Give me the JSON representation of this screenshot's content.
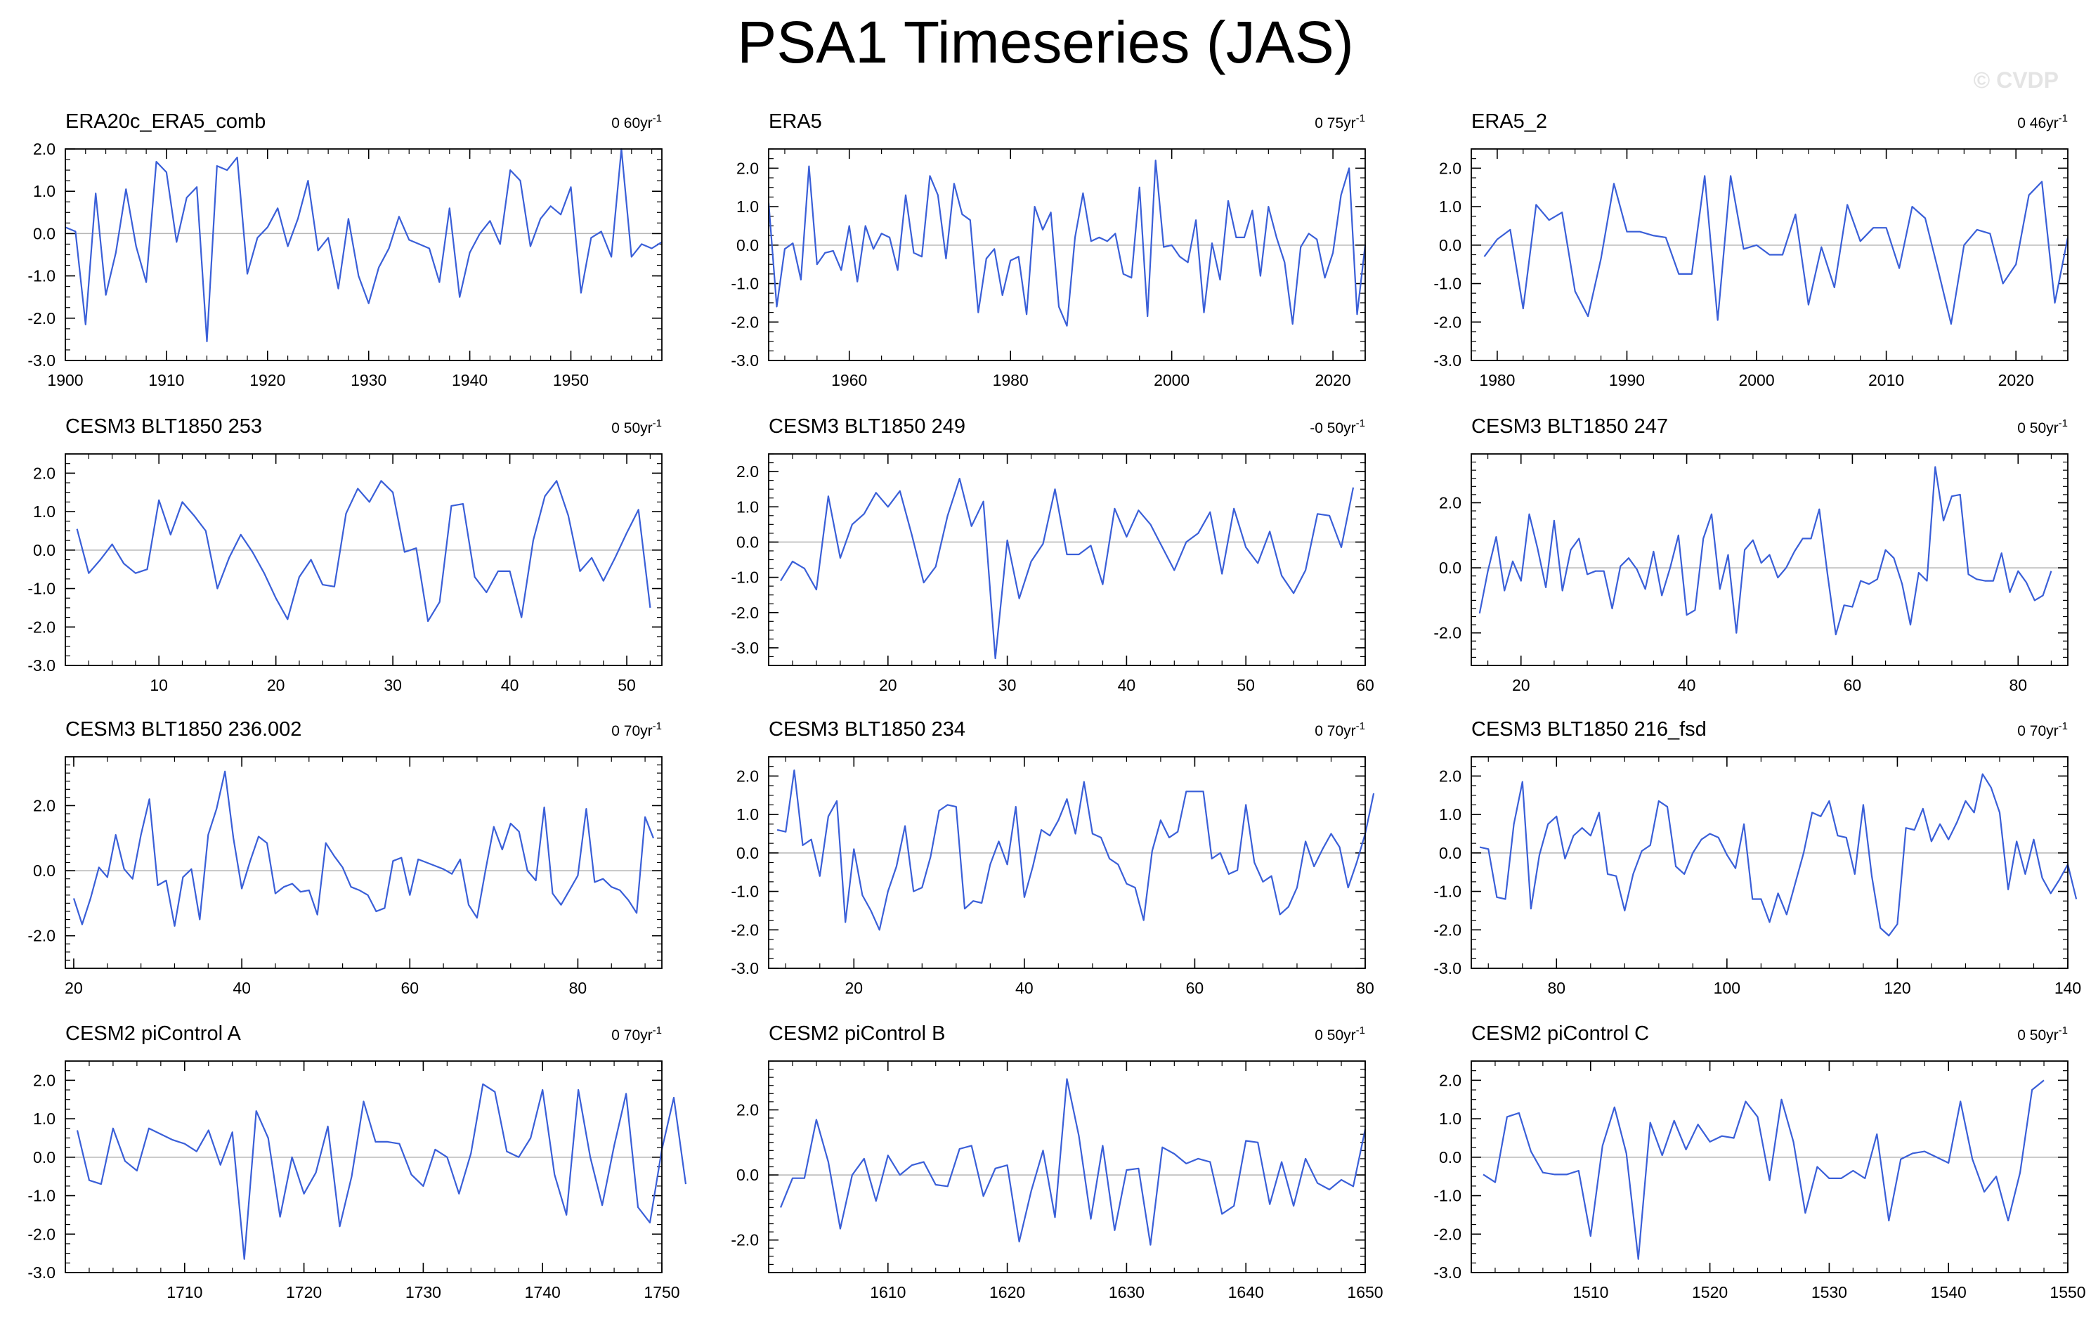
{
  "title": "PSA1 Timeseries (JAS)",
  "watermark": "© CVDP",
  "colors": {
    "series": "#3a5fd8",
    "zero_line": "#b4b4b4",
    "axis": "#000000"
  },
  "chart_data": [
    {
      "type": "line",
      "title": "ERA20c_ERA5_comb",
      "trend": "0 60yr",
      "trend_unit": "-1",
      "xlim": [
        1900,
        1959
      ],
      "ylim": [
        -3,
        2
      ],
      "xticks": [
        1900,
        1910,
        1920,
        1930,
        1940,
        1950
      ],
      "yticks": [
        -3,
        -2,
        -1,
        0,
        1,
        2
      ],
      "yticklabels": [
        "-3.0",
        "-2.0",
        "-1.0",
        "0.0",
        "1.0",
        "2.0"
      ],
      "x_start": 1900,
      "x_step": 1,
      "values": [
        0.15,
        0.05,
        -2.15,
        0.95,
        -1.45,
        -0.45,
        1.05,
        -0.3,
        -1.15,
        1.7,
        1.45,
        -0.2,
        0.85,
        1.1,
        -2.55,
        1.6,
        1.5,
        1.8,
        -0.95,
        -0.1,
        0.15,
        0.6,
        -0.3,
        0.35,
        1.25,
        -0.4,
        -0.1,
        -1.3,
        0.35,
        -1.0,
        -1.65,
        -0.8,
        -0.35,
        0.4,
        -0.15,
        -0.25,
        -0.35,
        -1.15,
        0.6,
        -1.5,
        -0.45,
        0.0,
        0.3,
        -0.25,
        1.5,
        1.25,
        -0.3,
        0.35,
        0.65,
        0.45,
        1.1,
        -1.4,
        -0.1,
        0.05,
        -0.55,
        2.0,
        -0.55,
        -0.25,
        -0.35,
        -0.2
      ]
    },
    {
      "type": "line",
      "title": "ERA5",
      "trend": "0 75yr",
      "trend_unit": "-1",
      "xlim": [
        1950,
        2024
      ],
      "ylim": [
        -3,
        2.5
      ],
      "xticks": [
        1960,
        1980,
        2000,
        2020
      ],
      "yticks": [
        -3,
        -2,
        -1,
        0,
        1,
        2
      ],
      "yticklabels": [
        "-3.0",
        "-2.0",
        "-1.0",
        "0.0",
        "1.0",
        "2.0"
      ],
      "x_start": 1950,
      "x_step": 1,
      "values": [
        1.1,
        -1.6,
        -0.1,
        0.05,
        -0.9,
        2.05,
        -0.5,
        -0.2,
        -0.15,
        -0.65,
        0.5,
        -0.95,
        0.5,
        -0.1,
        0.3,
        0.2,
        -0.65,
        1.3,
        -0.2,
        -0.3,
        1.8,
        1.3,
        -0.35,
        1.6,
        0.8,
        0.65,
        -1.75,
        -0.35,
        -0.1,
        -1.3,
        -0.4,
        -0.3,
        -1.8,
        1.0,
        0.4,
        0.85,
        -1.6,
        -2.1,
        0.2,
        1.35,
        0.1,
        0.2,
        0.1,
        0.3,
        -0.75,
        -0.85,
        1.5,
        -1.85,
        2.2,
        -0.05,
        0.0,
        -0.3,
        -0.45,
        0.65,
        -1.75,
        0.05,
        -0.9,
        1.15,
        0.2,
        0.2,
        0.9,
        -0.8,
        1.0,
        0.2,
        -0.45,
        -2.05,
        -0.05,
        0.3,
        0.15,
        -0.85,
        -0.2,
        1.3,
        2.0,
        -1.8,
        0.0
      ]
    },
    {
      "type": "line",
      "title": "ERA5_2",
      "trend": "0 46yr",
      "trend_unit": "-1",
      "xlim": [
        1978,
        2024
      ],
      "ylim": [
        -3,
        2.5
      ],
      "xticks": [
        1980,
        1990,
        2000,
        2010,
        2020
      ],
      "yticks": [
        -3,
        -2,
        -1,
        0,
        1,
        2
      ],
      "yticklabels": [
        "-3.0",
        "-2.0",
        "-1.0",
        "0.0",
        "1.0",
        "2.0"
      ],
      "x_start": 1979,
      "x_step": 1,
      "values": [
        -0.3,
        0.15,
        0.4,
        -1.65,
        1.05,
        0.65,
        0.85,
        -1.2,
        -1.85,
        -0.35,
        1.6,
        0.35,
        0.35,
        0.25,
        0.2,
        -0.75,
        -0.75,
        1.8,
        -1.95,
        1.8,
        -0.1,
        0.0,
        -0.25,
        -0.25,
        0.8,
        -1.55,
        -0.05,
        -1.1,
        1.05,
        0.1,
        0.45,
        0.45,
        -0.6,
        1.0,
        0.7,
        -0.65,
        -2.05,
        0.0,
        0.4,
        0.3,
        -1.0,
        -0.5,
        1.3,
        1.65,
        -1.5,
        0.2
      ]
    },
    {
      "type": "line",
      "title": "CESM3 BLT1850 253",
      "trend": "0 50yr",
      "trend_unit": "-1",
      "xlim": [
        2,
        53
      ],
      "ylim": [
        -3,
        2.5
      ],
      "xticks": [
        10,
        20,
        30,
        40,
        50
      ],
      "yticks": [
        -3,
        -2,
        -1,
        0,
        1,
        2
      ],
      "yticklabels": [
        "-3.0",
        "-2.0",
        "-1.0",
        "0.0",
        "1.0",
        "2.0"
      ],
      "x_start": 3,
      "x_step": 1,
      "values": [
        0.55,
        -0.6,
        -0.25,
        0.15,
        -0.35,
        -0.6,
        -0.5,
        1.3,
        0.4,
        1.25,
        0.9,
        0.5,
        -1.0,
        -0.2,
        0.4,
        -0.05,
        -0.6,
        -1.25,
        -1.8,
        -0.7,
        -0.25,
        -0.9,
        -0.95,
        0.95,
        1.6,
        1.25,
        1.8,
        1.5,
        -0.05,
        0.05,
        -1.85,
        -1.35,
        1.15,
        1.2,
        -0.7,
        -1.1,
        -0.55,
        -0.55,
        -1.75,
        0.25,
        1.4,
        1.8,
        0.9,
        -0.55,
        -0.2,
        -0.8,
        -0.2,
        0.45,
        1.05,
        -1.5
      ]
    },
    {
      "type": "line",
      "title": "CESM3 BLT1850 249",
      "trend": "-0 50yr",
      "trend_unit": "-1",
      "xlim": [
        10,
        60
      ],
      "ylim": [
        -3.5,
        2.5
      ],
      "xticks": [
        20,
        30,
        40,
        50,
        60
      ],
      "yticks": [
        -3,
        -2,
        -1,
        0,
        1,
        2
      ],
      "yticklabels": [
        "-3.0",
        "-2.0",
        "-1.0",
        "0.0",
        "1.0",
        "2.0"
      ],
      "x_start": 11,
      "x_step": 1,
      "values": [
        -1.1,
        -0.55,
        -0.75,
        -1.35,
        1.3,
        -0.45,
        0.5,
        0.8,
        1.4,
        1.0,
        1.45,
        0.2,
        -1.15,
        -0.7,
        0.75,
        1.8,
        0.45,
        1.15,
        -3.3,
        0.05,
        -1.6,
        -0.55,
        -0.05,
        1.5,
        -0.35,
        -0.35,
        -0.1,
        -1.2,
        0.95,
        0.15,
        0.9,
        0.5,
        -0.15,
        -0.8,
        0.0,
        0.25,
        0.85,
        -0.9,
        0.95,
        -0.15,
        -0.6,
        0.3,
        -0.95,
        -1.45,
        -0.8,
        0.8,
        0.75,
        -0.15,
        1.55
      ]
    },
    {
      "type": "line",
      "title": "CESM3 BLT1850 247",
      "trend": "0 50yr",
      "trend_unit": "-1",
      "xlim": [
        14,
        86
      ],
      "ylim": [
        -3,
        3.5
      ],
      "xticks": [
        20,
        40,
        60,
        80
      ],
      "yticks": [
        -2,
        0,
        2
      ],
      "yticklabels": [
        "-2.0",
        "0.0",
        "2.0"
      ],
      "x_start": 15,
      "x_step": 1,
      "values": [
        -1.4,
        -0.1,
        0.95,
        -0.7,
        0.2,
        -0.4,
        1.65,
        0.6,
        -0.6,
        1.45,
        -0.7,
        0.55,
        0.9,
        -0.2,
        -0.1,
        -0.1,
        -1.25,
        0.05,
        0.3,
        -0.05,
        -0.65,
        0.5,
        -0.85,
        0.0,
        1.0,
        -1.45,
        -1.3,
        0.9,
        1.65,
        -0.65,
        0.4,
        -2.0,
        0.55,
        0.85,
        0.15,
        0.4,
        -0.3,
        0.0,
        0.5,
        0.9,
        0.9,
        1.8,
        -0.2,
        -2.05,
        -1.15,
        -1.2,
        -0.4,
        -0.5,
        -0.35,
        0.55,
        0.3,
        -0.5,
        -1.75,
        -0.15,
        -0.4,
        3.1,
        1.45,
        2.2,
        2.25,
        -0.2,
        -0.35,
        -0.4,
        -0.4,
        0.45,
        -0.75,
        -0.1,
        -0.45,
        -1.0,
        -0.85,
        -0.1
      ]
    },
    {
      "type": "line",
      "title": "CESM3 BLT1850 236.002",
      "trend": "0 70yr",
      "trend_unit": "-1",
      "xlim": [
        19,
        90
      ],
      "ylim": [
        -3,
        3.5
      ],
      "xticks": [
        20,
        40,
        60,
        80
      ],
      "yticks": [
        -2,
        0,
        2
      ],
      "yticklabels": [
        "-2.0",
        "0.0",
        "2.0"
      ],
      "x_start": 20,
      "x_step": 1,
      "values": [
        -0.85,
        -1.65,
        -0.85,
        0.1,
        -0.2,
        1.1,
        0.05,
        -0.25,
        1.1,
        2.2,
        -0.45,
        -0.3,
        -1.7,
        -0.2,
        0.05,
        -1.5,
        1.1,
        1.9,
        3.05,
        1.0,
        -0.55,
        0.3,
        1.05,
        0.85,
        -0.7,
        -0.5,
        -0.4,
        -0.65,
        -0.6,
        -1.35,
        0.85,
        0.45,
        0.1,
        -0.5,
        -0.6,
        -0.75,
        -1.25,
        -1.15,
        0.3,
        0.4,
        -0.75,
        0.35,
        0.25,
        0.15,
        0.05,
        -0.1,
        0.35,
        -1.05,
        -1.45,
        0.0,
        1.35,
        0.65,
        1.45,
        1.2,
        0.0,
        -0.3,
        1.95,
        -0.7,
        -1.05,
        -0.6,
        -0.15,
        1.9,
        -0.35,
        -0.25,
        -0.5,
        -0.6,
        -0.9,
        -1.3,
        1.65,
        1.0
      ]
    },
    {
      "type": "line",
      "title": "CESM3 BLT1850 234",
      "trend": "0 70yr",
      "trend_unit": "-1",
      "xlim": [
        10,
        80
      ],
      "ylim": [
        -3,
        2.5
      ],
      "xticks": [
        20,
        40,
        60,
        80
      ],
      "yticks": [
        -3,
        -2,
        -1,
        0,
        1,
        2
      ],
      "yticklabels": [
        "-3.0",
        "-2.0",
        "-1.0",
        "0.0",
        "1.0",
        "2.0"
      ],
      "x_start": 11,
      "x_step": 1,
      "values": [
        0.6,
        0.55,
        2.15,
        0.2,
        0.35,
        -0.6,
        0.95,
        1.35,
        -1.8,
        0.1,
        -1.1,
        -1.5,
        -2.0,
        -1.0,
        -0.35,
        0.7,
        -1.0,
        -0.9,
        -0.1,
        1.1,
        1.25,
        1.2,
        -1.45,
        -1.25,
        -1.3,
        -0.3,
        0.3,
        -0.3,
        1.2,
        -1.15,
        -0.35,
        0.6,
        0.45,
        0.85,
        1.4,
        0.5,
        1.85,
        0.5,
        0.4,
        -0.15,
        -0.3,
        -0.8,
        -0.9,
        -1.75,
        0.05,
        0.85,
        0.4,
        0.55,
        1.6,
        1.6,
        1.6,
        -0.15,
        0.0,
        -0.55,
        -0.45,
        1.25,
        -0.25,
        -0.75,
        -0.6,
        -1.6,
        -1.4,
        -0.9,
        0.3,
        -0.35,
        0.1,
        0.5,
        0.15,
        -0.9,
        -0.25,
        0.5,
        1.55
      ]
    },
    {
      "type": "line",
      "title": "CESM3 BLT1850 216_fsd",
      "trend": "0 70yr",
      "trend_unit": "-1",
      "xlim": [
        70,
        140
      ],
      "ylim": [
        -3,
        2.5
      ],
      "xticks": [
        80,
        100,
        120,
        140
      ],
      "yticks": [
        -3,
        -2,
        -1,
        0,
        1,
        2
      ],
      "yticklabels": [
        "-3.0",
        "-2.0",
        "-1.0",
        "0.0",
        "1.0",
        "2.0"
      ],
      "x_start": 71,
      "x_step": 1,
      "values": [
        0.15,
        0.1,
        -1.15,
        -1.2,
        0.75,
        1.85,
        -1.45,
        -0.05,
        0.75,
        0.95,
        -0.15,
        0.45,
        0.65,
        0.45,
        1.05,
        -0.55,
        -0.6,
        -1.5,
        -0.55,
        0.05,
        0.2,
        1.35,
        1.2,
        -0.35,
        -0.55,
        0.0,
        0.35,
        0.5,
        0.4,
        -0.05,
        -0.4,
        0.75,
        -1.2,
        -1.2,
        -1.8,
        -1.05,
        -1.6,
        -0.8,
        0.0,
        1.05,
        0.95,
        1.35,
        0.45,
        0.4,
        -0.55,
        1.25,
        -0.6,
        -1.95,
        -2.15,
        -1.85,
        0.65,
        0.6,
        1.15,
        0.3,
        0.75,
        0.35,
        0.8,
        1.35,
        1.05,
        2.05,
        1.7,
        1.05,
        -0.95,
        0.3,
        -0.55,
        0.35,
        -0.65,
        -1.05,
        -0.7,
        -0.3,
        -1.2
      ]
    },
    {
      "type": "line",
      "title": "CESM2 piControl A",
      "trend": "0 70yr",
      "trend_unit": "-1",
      "xlim": [
        1700,
        1750
      ],
      "ylim": [
        -3,
        2.5
      ],
      "xticks": [
        1710,
        1720,
        1730,
        1740,
        1750
      ],
      "yticks": [
        -3,
        -2,
        -1,
        0,
        1,
        2
      ],
      "yticklabels": [
        "-3.0",
        "-2.0",
        "-1.0",
        "0.0",
        "1.0",
        "2.0"
      ],
      "x_start": 1701,
      "x_step": 1,
      "values": [
        0.7,
        -0.6,
        -0.7,
        0.75,
        -0.1,
        -0.35,
        0.75,
        0.6,
        0.45,
        0.35,
        0.15,
        0.7,
        -0.2,
        0.65,
        -2.65,
        1.2,
        0.5,
        -1.55,
        0.0,
        -0.95,
        -0.4,
        0.8,
        -1.8,
        -0.5,
        1.45,
        0.4,
        0.4,
        0.35,
        -0.45,
        -0.75,
        0.2,
        0.0,
        -0.95,
        0.1,
        1.9,
        1.7,
        0.15,
        0.0,
        0.5,
        1.75,
        -0.45,
        -1.5,
        1.75,
        0.0,
        -1.25,
        0.3,
        1.65,
        -1.3,
        -1.7,
        0.2,
        1.55,
        -0.7
      ]
    },
    {
      "type": "line",
      "title": "CESM2 piControl B",
      "trend": "0 50yr",
      "trend_unit": "-1",
      "xlim": [
        1600,
        1650
      ],
      "ylim": [
        -3,
        3.5
      ],
      "xticks": [
        1610,
        1620,
        1630,
        1640,
        1650
      ],
      "yticks": [
        -2,
        0,
        2
      ],
      "yticklabels": [
        "-2.0",
        "0.0",
        "2.0"
      ],
      "x_start": 1601,
      "x_step": 1,
      "values": [
        -1.0,
        -0.1,
        -0.1,
        1.7,
        0.4,
        -1.65,
        0.0,
        0.5,
        -0.8,
        0.6,
        0.0,
        0.3,
        0.4,
        -0.3,
        -0.35,
        0.8,
        0.9,
        -0.65,
        0.2,
        0.3,
        -2.05,
        -0.5,
        0.75,
        -1.3,
        2.95,
        1.2,
        -1.35,
        0.9,
        -1.7,
        0.15,
        0.2,
        -2.15,
        0.85,
        0.65,
        0.35,
        0.5,
        0.4,
        -1.2,
        -0.95,
        1.05,
        1.0,
        -0.9,
        0.4,
        -0.95,
        0.5,
        -0.25,
        -0.45,
        -0.15,
        -0.35,
        1.4
      ]
    },
    {
      "type": "line",
      "title": "CESM2 piControl C",
      "trend": "0 50yr",
      "trend_unit": "-1",
      "xlim": [
        1500,
        1550
      ],
      "ylim": [
        -3,
        2.5
      ],
      "xticks": [
        1510,
        1520,
        1530,
        1540,
        1550
      ],
      "yticks": [
        -3,
        -2,
        -1,
        0,
        1,
        2
      ],
      "yticklabels": [
        "-3.0",
        "-2.0",
        "-1.0",
        "0.0",
        "1.0",
        "2.0"
      ],
      "x_start": 1501,
      "x_step": 1,
      "values": [
        -0.45,
        -0.65,
        1.05,
        1.15,
        0.15,
        -0.4,
        -0.45,
        -0.45,
        -0.35,
        -2.05,
        0.3,
        1.3,
        0.1,
        -2.65,
        0.9,
        0.05,
        0.95,
        0.2,
        0.85,
        0.4,
        0.55,
        0.5,
        1.45,
        1.05,
        -0.6,
        1.5,
        0.4,
        -1.45,
        -0.25,
        -0.55,
        -0.55,
        -0.35,
        -0.55,
        0.6,
        -1.65,
        -0.05,
        0.1,
        0.15,
        0.0,
        -0.15,
        1.45,
        -0.05,
        -0.9,
        -0.5,
        -1.65,
        -0.4,
        1.75,
        2.0
      ]
    }
  ]
}
